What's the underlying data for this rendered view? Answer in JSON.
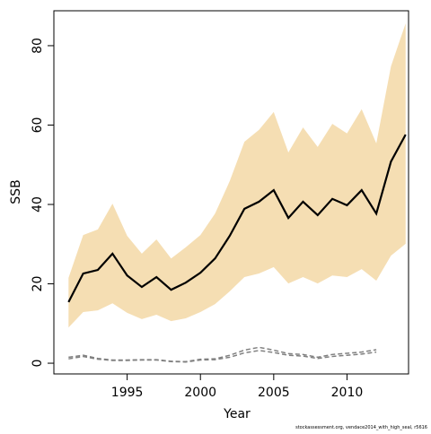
{
  "chart_data": {
    "type": "line",
    "x_label": "Year",
    "y_label": "SSB",
    "caption": "stockassessment.org, vendace2014_with_high_seal, r5616",
    "x": [
      1991,
      1992,
      1993,
      1994,
      1995,
      1996,
      1997,
      1998,
      1999,
      2000,
      2001,
      2002,
      2003,
      2004,
      2005,
      2006,
      2007,
      2008,
      2009,
      2010,
      2011,
      2012,
      2013,
      2014
    ],
    "band": {
      "color": "#f5deb3",
      "upper": [
        21.5,
        32.3,
        33.7,
        40.2,
        32.1,
        27.6,
        31.2,
        26.4,
        29.2,
        32.3,
        37.7,
        45.9,
        55.8,
        58.8,
        63.3,
        53.1,
        59.4,
        54.5,
        60.3,
        57.9,
        64.0,
        55.4,
        74.8,
        85.6
      ],
      "lower": [
        9.0,
        12.9,
        13.3,
        15.1,
        12.7,
        11.1,
        12.2,
        10.6,
        11.3,
        12.9,
        14.9,
        18.1,
        21.7,
        22.6,
        24.2,
        20.1,
        21.7,
        20.1,
        22.1,
        21.7,
        23.7,
        20.8,
        27.1,
        30.1
      ]
    },
    "series": [
      {
        "color": "#000000",
        "dashed": false,
        "values": [
          15.4,
          22.6,
          23.5,
          27.6,
          22.1,
          19.2,
          21.7,
          18.5,
          20.3,
          22.8,
          26.4,
          32.1,
          38.9,
          40.7,
          43.6,
          36.6,
          40.7,
          37.3,
          41.4,
          39.8,
          43.6,
          37.7,
          50.8,
          57.6
        ]
      },
      {
        "color": "#808080",
        "dashed": true,
        "values": [
          1.5,
          2.0,
          1.2,
          0.8,
          0.8,
          0.9,
          0.9,
          0.5,
          0.4,
          1.0,
          1.1,
          2.0,
          3.3,
          4.0,
          3.3,
          2.4,
          2.2,
          1.5,
          2.2,
          2.5,
          2.8,
          3.4,
          null,
          null
        ]
      },
      {
        "color": "#808080",
        "dashed": true,
        "values": [
          1.1,
          1.7,
          1.0,
          0.7,
          0.7,
          0.8,
          0.8,
          0.4,
          0.3,
          0.8,
          0.9,
          1.5,
          2.6,
          3.2,
          2.7,
          2.0,
          1.8,
          1.2,
          1.7,
          2.0,
          2.3,
          2.8,
          null,
          null
        ]
      }
    ],
    "xlim": [
      1990,
      2014.2
    ],
    "ylim": [
      -2.7,
      88.8
    ],
    "xticks": [
      1995,
      2000,
      2005,
      2010
    ],
    "yticks": [
      0,
      20,
      40,
      60,
      80
    ]
  }
}
